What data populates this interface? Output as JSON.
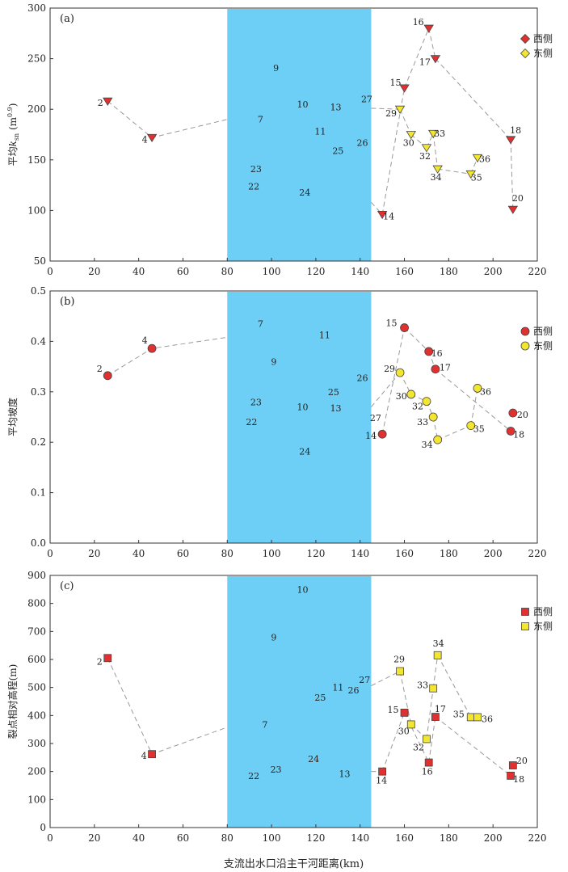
{
  "chart_data": [
    {
      "panel": "(a)",
      "type": "scatter",
      "ylabel": "平均k_sn (m^0.9)",
      "xlabel": "",
      "xlim": [
        0,
        220
      ],
      "ylim": [
        50,
        300
      ],
      "xticks": [
        0,
        20,
        40,
        60,
        80,
        100,
        120,
        140,
        160,
        180,
        200,
        220
      ],
      "yticks": [
        50,
        100,
        150,
        200,
        250,
        300
      ],
      "band": [
        80,
        145
      ],
      "legend": {
        "position": "top-right",
        "marker": "diamond",
        "items": [
          {
            "label": "西侧",
            "color": "#e03030"
          },
          {
            "label": "东侧",
            "color": "#f2e631"
          }
        ]
      },
      "west_marker": "triangle",
      "east_marker": "triangle",
      "series": [
        {
          "name": "西侧",
          "color": "#e03030",
          "points": [
            {
              "id": "2",
              "x": 26,
              "y": 208
            },
            {
              "id": "4",
              "x": 46,
              "y": 172
            },
            {
              "id": "14",
              "x": 150,
              "y": 96
            },
            {
              "id": "15",
              "x": 160,
              "y": 221
            },
            {
              "id": "16",
              "x": 171,
              "y": 280
            },
            {
              "id": "17",
              "x": 174,
              "y": 250
            },
            {
              "id": "18",
              "x": 208,
              "y": 170
            },
            {
              "id": "20",
              "x": 209,
              "y": 101
            }
          ]
        },
        {
          "name": "东侧",
          "color": "#f2e631",
          "points": [
            {
              "id": "29",
              "x": 158,
              "y": 200
            },
            {
              "id": "30",
              "x": 163,
              "y": 175
            },
            {
              "id": "32",
              "x": 170,
              "y": 162
            },
            {
              "id": "33",
              "x": 173,
              "y": 176
            },
            {
              "id": "34",
              "x": 175,
              "y": 141
            },
            {
              "id": "35",
              "x": 190,
              "y": 136
            },
            {
              "id": "36",
              "x": 193,
              "y": 152
            }
          ]
        }
      ],
      "band_labels": [
        {
          "id": "9",
          "x": 102,
          "y": 241
        },
        {
          "id": "7",
          "x": 95,
          "y": 190
        },
        {
          "id": "10",
          "x": 114,
          "y": 205
        },
        {
          "id": "11",
          "x": 122,
          "y": 178
        },
        {
          "id": "13",
          "x": 129,
          "y": 202
        },
        {
          "id": "27",
          "x": 143,
          "y": 210
        },
        {
          "id": "26",
          "x": 141,
          "y": 167
        },
        {
          "id": "25",
          "x": 130,
          "y": 159
        },
        {
          "id": "23",
          "x": 93,
          "y": 141
        },
        {
          "id": "22",
          "x": 92,
          "y": 124
        },
        {
          "id": "24",
          "x": 115,
          "y": 118
        }
      ],
      "lines": [
        [
          "2",
          "4",
          "lx:80,190"
        ],
        [
          "lx:145,201",
          "29"
        ],
        [
          "29",
          "30"
        ],
        [
          "30",
          "32"
        ],
        [
          "32",
          "33"
        ],
        [
          "33",
          "34"
        ],
        [
          "34",
          "35"
        ],
        [
          "35",
          "36"
        ],
        [
          "lx:145,108",
          "14"
        ],
        [
          "14",
          "15"
        ],
        [
          "15",
          "16"
        ],
        [
          "16",
          "17"
        ],
        [
          "17",
          "18"
        ],
        [
          "18",
          "20"
        ]
      ]
    },
    {
      "panel": "(b)",
      "type": "scatter",
      "ylabel": "平均坡度",
      "xlabel": "",
      "xlim": [
        0,
        220
      ],
      "ylim": [
        0,
        0.5
      ],
      "xticks": [
        0,
        20,
        40,
        60,
        80,
        100,
        120,
        140,
        160,
        180,
        200,
        220
      ],
      "yticks": [
        0.0,
        0.1,
        0.2,
        0.3,
        0.4,
        0.5
      ],
      "band": [
        80,
        145
      ],
      "legend": {
        "position": "top-right",
        "marker": "circle",
        "items": [
          {
            "label": "西侧",
            "color": "#e03030"
          },
          {
            "label": "东侧",
            "color": "#f2e631"
          }
        ]
      },
      "west_marker": "circle",
      "east_marker": "circle",
      "series": [
        {
          "name": "西侧",
          "color": "#e03030",
          "points": [
            {
              "id": "2",
              "x": 26,
              "y": 0.332
            },
            {
              "id": "4",
              "x": 46,
              "y": 0.386
            },
            {
              "id": "14",
              "x": 150,
              "y": 0.216
            },
            {
              "id": "15",
              "x": 160,
              "y": 0.427
            },
            {
              "id": "16",
              "x": 171,
              "y": 0.38
            },
            {
              "id": "17",
              "x": 174,
              "y": 0.345
            },
            {
              "id": "18",
              "x": 208,
              "y": 0.222
            },
            {
              "id": "20",
              "x": 209,
              "y": 0.258
            }
          ]
        },
        {
          "name": "东侧",
          "color": "#f2e631",
          "points": [
            {
              "id": "29",
              "x": 158,
              "y": 0.338
            },
            {
              "id": "30",
              "x": 163,
              "y": 0.295
            },
            {
              "id": "32",
              "x": 170,
              "y": 0.281
            },
            {
              "id": "33",
              "x": 173,
              "y": 0.25
            },
            {
              "id": "34",
              "x": 175,
              "y": 0.205
            },
            {
              "id": "35",
              "x": 190,
              "y": 0.233
            },
            {
              "id": "36",
              "x": 193,
              "y": 0.307
            }
          ]
        }
      ],
      "band_labels": [
        {
          "id": "7",
          "x": 95,
          "y": 0.435
        },
        {
          "id": "11",
          "x": 124,
          "y": 0.413
        },
        {
          "id": "9",
          "x": 101,
          "y": 0.36
        },
        {
          "id": "26",
          "x": 141,
          "y": 0.328
        },
        {
          "id": "25",
          "x": 128,
          "y": 0.3
        },
        {
          "id": "23",
          "x": 93,
          "y": 0.28
        },
        {
          "id": "10",
          "x": 114,
          "y": 0.27
        },
        {
          "id": "13",
          "x": 129,
          "y": 0.268
        },
        {
          "id": "22",
          "x": 91,
          "y": 0.24
        },
        {
          "id": "24",
          "x": 115,
          "y": 0.182
        }
      ],
      "lines": [
        [
          "2",
          "4",
          "lx:80,0.408"
        ],
        [
          "lx:145,0.27",
          "29"
        ],
        [
          "29",
          "30"
        ],
        [
          "30",
          "32"
        ],
        [
          "32",
          "33"
        ],
        [
          "33",
          "34"
        ],
        [
          "34",
          "35"
        ],
        [
          "35",
          "36"
        ],
        [
          "14",
          "15"
        ],
        [
          "15",
          "16"
        ],
        [
          "16",
          "17"
        ],
        [
          "17",
          "18"
        ]
      ],
      "outer_labels": [
        {
          "id": "27",
          "x": 147,
          "y": 0.248
        }
      ]
    },
    {
      "panel": "(c)",
      "type": "scatter",
      "ylabel": "裂点相对高程(m)",
      "xlabel": "支流出水口沿主干河距离(km)",
      "xlim": [
        0,
        220
      ],
      "ylim": [
        0,
        900
      ],
      "xticks": [
        0,
        20,
        40,
        60,
        80,
        100,
        120,
        140,
        160,
        180,
        200,
        220
      ],
      "yticks": [
        0,
        100,
        200,
        300,
        400,
        500,
        600,
        700,
        800,
        900
      ],
      "band": [
        80,
        145
      ],
      "legend": {
        "position": "top-right",
        "marker": "square",
        "items": [
          {
            "label": "西侧",
            "color": "#e03030"
          },
          {
            "label": "东侧",
            "color": "#f2e631"
          }
        ]
      },
      "west_marker": "square",
      "east_marker": "square",
      "series": [
        {
          "name": "西侧",
          "color": "#e03030",
          "points": [
            {
              "id": "2",
              "x": 26,
              "y": 605
            },
            {
              "id": "4",
              "x": 46,
              "y": 262
            },
            {
              "id": "14",
              "x": 150,
              "y": 200
            },
            {
              "id": "15",
              "x": 160,
              "y": 410
            },
            {
              "id": "16",
              "x": 171,
              "y": 232
            },
            {
              "id": "17",
              "x": 174,
              "y": 395
            },
            {
              "id": "18",
              "x": 208,
              "y": 185
            },
            {
              "id": "20",
              "x": 209,
              "y": 222
            }
          ]
        },
        {
          "name": "东侧",
          "color": "#f2e631",
          "points": [
            {
              "id": "29",
              "x": 158,
              "y": 558
            },
            {
              "id": "30",
              "x": 163,
              "y": 368
            },
            {
              "id": "32",
              "x": 170,
              "y": 316
            },
            {
              "id": "33",
              "x": 173,
              "y": 497
            },
            {
              "id": "34",
              "x": 175,
              "y": 615
            },
            {
              "id": "35",
              "x": 190,
              "y": 394
            },
            {
              "id": "36",
              "x": 193,
              "y": 394
            }
          ]
        }
      ],
      "band_labels": [
        {
          "id": "10",
          "x": 114,
          "y": 850
        },
        {
          "id": "9",
          "x": 101,
          "y": 680
        },
        {
          "id": "27",
          "x": 142,
          "y": 528
        },
        {
          "id": "11",
          "x": 130,
          "y": 500
        },
        {
          "id": "26",
          "x": 137,
          "y": 490
        },
        {
          "id": "25",
          "x": 122,
          "y": 465
        },
        {
          "id": "7",
          "x": 97,
          "y": 368
        },
        {
          "id": "24",
          "x": 119,
          "y": 245
        },
        {
          "id": "23",
          "x": 102,
          "y": 208
        },
        {
          "id": "22",
          "x": 92,
          "y": 185
        },
        {
          "id": "13",
          "x": 133,
          "y": 192
        }
      ],
      "lines": [
        [
          "2",
          "4",
          "lx:80,358"
        ],
        [
          "lx:145,506",
          "29"
        ],
        [
          "29",
          "30"
        ],
        [
          "30",
          "32"
        ],
        [
          "32",
          "33"
        ],
        [
          "33",
          "34"
        ],
        [
          "34",
          "35"
        ],
        [
          "35",
          "36"
        ],
        [
          "lx:145,200",
          "14"
        ],
        [
          "14",
          "15"
        ],
        [
          "15",
          "16"
        ],
        [
          "16",
          "17"
        ],
        [
          "17",
          "18"
        ]
      ]
    }
  ]
}
